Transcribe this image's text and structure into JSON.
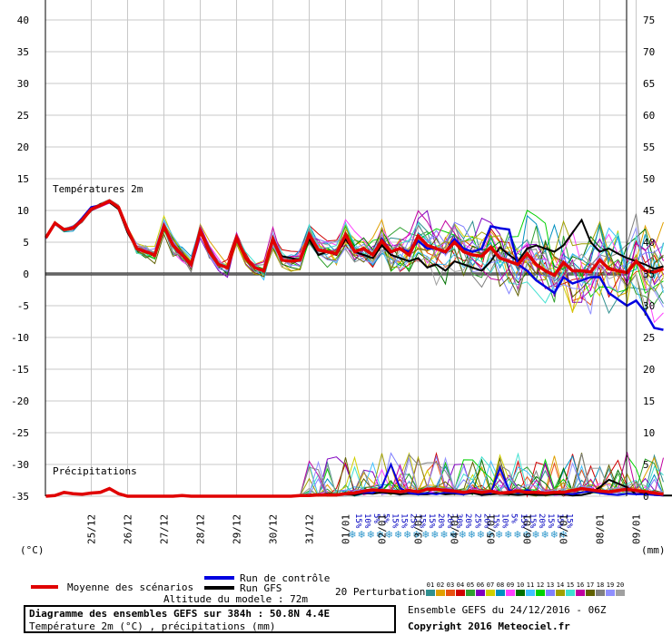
{
  "chart_data": {
    "type": "line",
    "temp_label": "Températures 2m",
    "precip_label": "Précipitations",
    "x_ticks": [
      "25/12",
      "26/12",
      "27/12",
      "28/12",
      "29/12",
      "30/12",
      "31/12",
      "01/01",
      "02/01",
      "03/01",
      "04/01",
      "05/01",
      "06/01",
      "07/01",
      "08/01",
      "09/01"
    ],
    "y_left_ticks": [
      40,
      35,
      30,
      25,
      20,
      15,
      10,
      5,
      0,
      -5,
      -10,
      -15,
      -20,
      -25,
      -30,
      -35
    ],
    "y_right_ticks": [
      75,
      70,
      65,
      60,
      55,
      50,
      45,
      40,
      35,
      30,
      25,
      20,
      15,
      10,
      5,
      0
    ],
    "y_left_unit": "(°C)",
    "y_right_unit": "(mm)",
    "temp_ylim": [
      -35,
      40
    ],
    "precip_ylim": [
      0,
      10
    ],
    "x_step_hours": 6,
    "x_first_tick_index": 5,
    "x_tick_spacing": 4,
    "snow_labels": [
      "15%",
      "10%",
      "5%",
      "5%",
      "15%",
      "15%",
      "25%",
      "15%",
      "15%",
      "20%",
      "20%",
      "30%",
      "20%",
      "25%",
      "20%",
      "15%",
      "10%",
      "5%",
      "15%",
      "15%",
      "20%",
      "15%",
      "15%",
      "15%"
    ],
    "mean_temp": [
      5.7,
      8,
      7,
      7.2,
      8.5,
      10.2,
      10.8,
      11.5,
      10.5,
      7,
      4,
      3.5,
      3,
      7.5,
      4.5,
      3,
      1.5,
      6.8,
      3.5,
      1.5,
      1,
      5.7,
      2.5,
      1,
      0.5,
      5.5,
      2.2,
      2,
      2.2,
      6.2,
      3.8,
      3.5,
      3.2,
      6.2,
      3.5,
      4,
      3,
      5.2,
      3.5,
      4,
      3,
      6,
      4.5,
      4,
      3.5,
      5,
      3.5,
      3,
      2.8,
      4.2,
      2.5,
      2,
      1.5,
      3.2,
      1.5,
      0.5,
      -0.2,
      1.8,
      0.5,
      0.5,
      0.3,
      2.2,
      0.8,
      0.5,
      0.2,
      2,
      0.5,
      0.3,
      0.8
    ],
    "control_temp": [
      5.7,
      8,
      7,
      7.2,
      8.8,
      10.5,
      10.8,
      11.5,
      10.5,
      7,
      4,
      3.5,
      3,
      7.5,
      4.5,
      3,
      1.5,
      6.8,
      3.5,
      1.5,
      1,
      5.7,
      2.5,
      1,
      0.5,
      5.5,
      2.2,
      2,
      2.2,
      6.2,
      3.8,
      3.5,
      3.2,
      6.2,
      3.5,
      4,
      3,
      5.5,
      3.5,
      4,
      3.5,
      5.2,
      4,
      4,
      3.5,
      5.5,
      4,
      3.5,
      4,
      7.5,
      7.2,
      7,
      1.5,
      0.5,
      -1,
      -2,
      -3,
      -0.5,
      -1.5,
      -1,
      -0.5,
      -0.5,
      -3,
      -4,
      -5,
      -4.2,
      -6,
      -8.5,
      -8.8
    ],
    "gfs_temp": [
      5.7,
      8,
      7,
      7.2,
      8.5,
      10,
      11,
      11.3,
      10.2,
      6.5,
      4,
      3.5,
      3,
      7.5,
      4.5,
      3,
      1.5,
      6.5,
      3.5,
      1.5,
      1,
      5.5,
      2.5,
      1,
      0.5,
      5.2,
      2.8,
      2.5,
      2.2,
      5.5,
      3,
      3.5,
      3,
      5.5,
      3.5,
      3,
      2.5,
      4.5,
      3,
      2.5,
      2,
      2.5,
      1,
      1.5,
      0.5,
      2,
      1.5,
      1,
      0.5,
      2,
      4.2,
      3,
      2,
      4,
      4.5,
      4,
      3.5,
      4.5,
      6.5,
      8.5,
      5,
      3.5,
      4,
      3.2,
      2.5,
      2,
      1.5,
      0.8,
      1.2
    ],
    "mean_precip": [
      0,
      0.1,
      0.6,
      0.4,
      0.3,
      0.5,
      0.6,
      1.2,
      0.4,
      0,
      0,
      0,
      0,
      0,
      0,
      0.1,
      0,
      0,
      0,
      0,
      0,
      0,
      0,
      0,
      0,
      0,
      0,
      0,
      0.1,
      0.1,
      0.2,
      0.2,
      0.2,
      0.4,
      0.5,
      0.8,
      1,
      0.9,
      0.8,
      0.7,
      0.9,
      0.7,
      1.1,
      1.1,
      0.9,
      0.8,
      0.6,
      0.8,
      0.6,
      0.8,
      0.5,
      0.6,
      0.8,
      0.6,
      0.6,
      0.5,
      0.6,
      0.6,
      0.9,
      1.2,
      1,
      0.8,
      0.7,
      0.9,
      1.1,
      0.9,
      0.7,
      0.5,
      0.3
    ],
    "control_precip": [
      0,
      0.1,
      0.6,
      0.4,
      0.3,
      0.5,
      0.6,
      1.2,
      0.4,
      0,
      0,
      0,
      0,
      0,
      0,
      0.1,
      0,
      0,
      0,
      0,
      0,
      0,
      0,
      0,
      0,
      0,
      0,
      0,
      0.1,
      0.1,
      0.3,
      0.3,
      0.2,
      0.5,
      0.4,
      0.6,
      0.5,
      1.5,
      5,
      1.3,
      0.5,
      0.3,
      0.5,
      0.3,
      0.6,
      0.5,
      0.3,
      0.7,
      0.5,
      0.5,
      4.5,
      1,
      0.5,
      1,
      0.5,
      0.5,
      0.7,
      0.5,
      0.3,
      0.6,
      0.8,
      0.5,
      0.3,
      0.2,
      0.4,
      0.3,
      0.3,
      0.2,
      0.1
    ],
    "gfs_precip": [
      0,
      0.1,
      0.5,
      0.4,
      0.3,
      0.5,
      0.7,
      1.2,
      0.4,
      0,
      0,
      0,
      0,
      0,
      0,
      0.1,
      0,
      0,
      0,
      0,
      0,
      0,
      0,
      0,
      0,
      0,
      0,
      0,
      0.1,
      0.2,
      0.2,
      0.4,
      0.3,
      0.3,
      0.2,
      0.5,
      0.4,
      0.6,
      0.5,
      0.3,
      0.4,
      0.3,
      0.3,
      0.5,
      0.3,
      0.4,
      0.3,
      0.5,
      0.2,
      0.3,
      0.4,
      0.3,
      0.2,
      0.3,
      0.2,
      0.2,
      0.3,
      0.3,
      0.1,
      0.2,
      0.5,
      1.4,
      2.6,
      2,
      1.4,
      0.3,
      0.5,
      0.2,
      0.1,
      0.1
    ],
    "perturbation_colors": [
      "#2f8f8f",
      "#e0a000",
      "#e85010",
      "#d00000",
      "#30a030",
      "#8000c0",
      "#d0d000",
      "#0090c0",
      "#ff40ff",
      "#007000",
      "#40c0ff",
      "#00d000",
      "#8080ff",
      "#a0a000",
      "#40e0d0",
      "#c000a0",
      "#606000",
      "#808080",
      "#9090ff",
      "#a0a0a0"
    ],
    "perturbation_ids": [
      "01",
      "02",
      "03",
      "04",
      "05",
      "06",
      "07",
      "08",
      "09",
      "10",
      "11",
      "12",
      "13",
      "14",
      "15",
      "16",
      "17",
      "18",
      "19",
      "20"
    ]
  },
  "legend": {
    "mean": "Moyenne des scénarios",
    "control": "Run de contrôle",
    "gfs": "Run GFS",
    "perturbations": "20 Perturbations",
    "altitude": "Altitude du modele : 72m",
    "mean_color": "#e00000",
    "control_color": "#0000e0",
    "gfs_color": "#000000"
  },
  "footer": {
    "title": "Diagramme des ensembles GEFS sur 384h : 50.8N 4.4E",
    "subtitle": "Température 2m (°C) , précipitations (mm)",
    "run": "Ensemble GEFS du 24/12/2016 - 06Z",
    "copyright": "Copyright 2016 Meteociel.fr"
  }
}
